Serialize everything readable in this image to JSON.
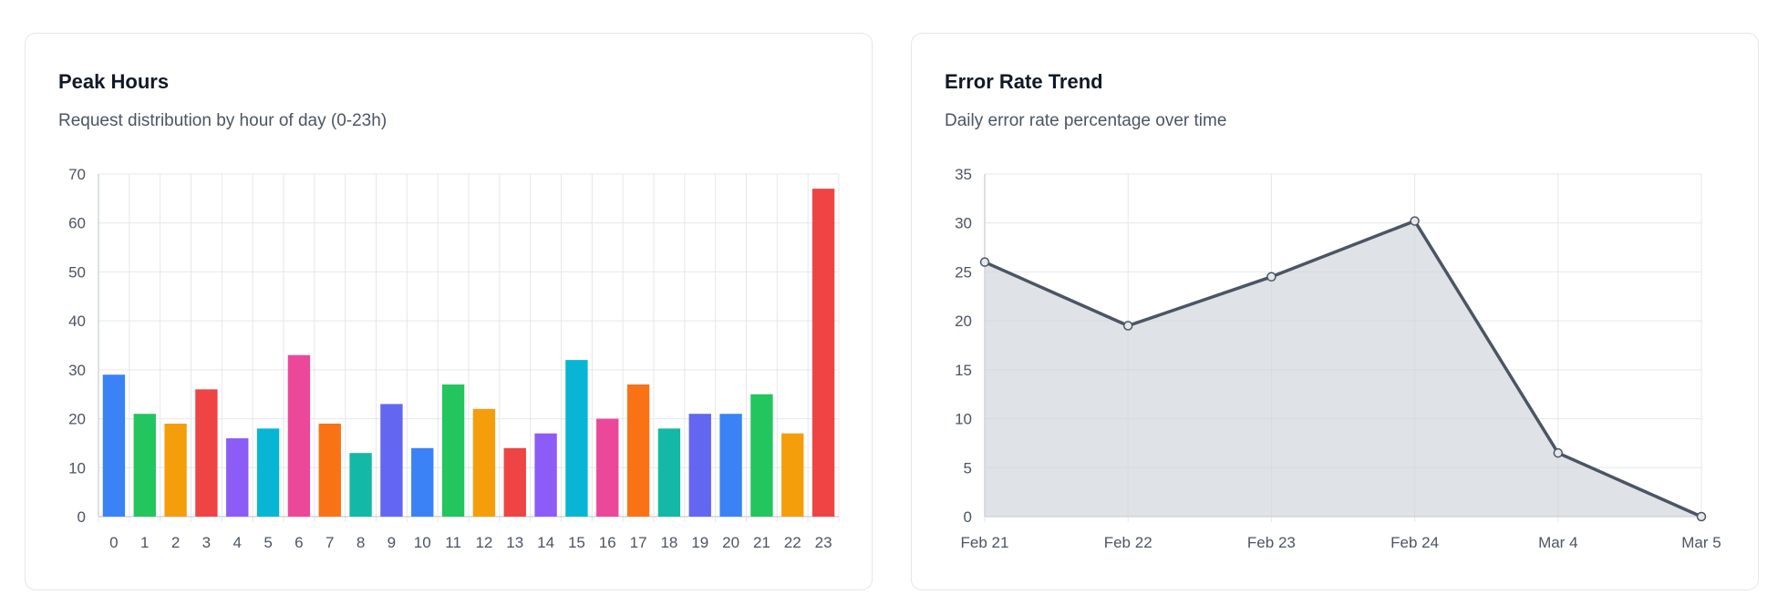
{
  "cards": {
    "peak_hours": {
      "title": "Peak Hours",
      "subtitle": "Request distribution by hour of day (0-23h)"
    },
    "error_rate": {
      "title": "Error Rate Trend",
      "subtitle": "Daily error rate percentage over time"
    }
  },
  "chart_data": [
    {
      "type": "bar",
      "categories": [
        "0",
        "1",
        "2",
        "3",
        "4",
        "5",
        "6",
        "7",
        "8",
        "9",
        "10",
        "11",
        "12",
        "13",
        "14",
        "15",
        "16",
        "17",
        "18",
        "19",
        "20",
        "21",
        "22",
        "23"
      ],
      "values": [
        29,
        21,
        19,
        26,
        16,
        18,
        33,
        19,
        13,
        23,
        14,
        27,
        22,
        14,
        17,
        32,
        20,
        27,
        18,
        21,
        21,
        25,
        17,
        67
      ],
      "colors": [
        "#3b82f6",
        "#22c55e",
        "#f59e0b",
        "#ef4444",
        "#8b5cf6",
        "#06b6d4",
        "#ec4899",
        "#f97316",
        "#14b8a6",
        "#6366f1",
        "#3b82f6",
        "#22c55e",
        "#f59e0b",
        "#ef4444",
        "#8b5cf6",
        "#06b6d4",
        "#ec4899",
        "#f97316",
        "#14b8a6",
        "#6366f1",
        "#3b82f6",
        "#22c55e",
        "#f59e0b",
        "#ef4444"
      ],
      "ylim": [
        0,
        70
      ],
      "yticks": [
        0,
        10,
        20,
        30,
        40,
        50,
        60,
        70
      ],
      "grid": true,
      "legend": "none"
    },
    {
      "type": "area",
      "categories": [
        "Feb 21",
        "Feb 22",
        "Feb 23",
        "Feb 24",
        "Mar 4",
        "Mar 5"
      ],
      "values": [
        26,
        19.5,
        24.5,
        30.2,
        6.5,
        0
      ],
      "line_color": "#4b5563",
      "fill_color": "#d1d5db",
      "ylim": [
        0,
        35
      ],
      "yticks": [
        0,
        5,
        10,
        15,
        20,
        25,
        30,
        35
      ],
      "grid": true,
      "legend": "none"
    }
  ]
}
